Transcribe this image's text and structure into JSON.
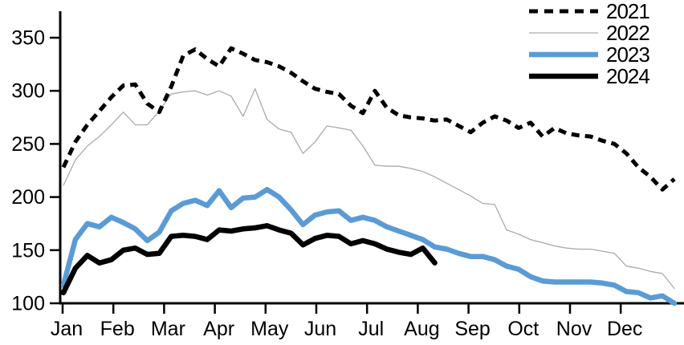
{
  "chart_data": {
    "type": "line",
    "title": "",
    "xlabel": "",
    "ylabel": "",
    "x_unit": "weekly observations, Jan-Dec",
    "x_tick_labels": [
      "Jan",
      "Feb",
      "Mar",
      "Apr",
      "May",
      "Jun",
      "Jul",
      "Aug",
      "Sep",
      "Oct",
      "Nov",
      "Dec"
    ],
    "y_ticks": [
      100,
      150,
      200,
      250,
      300,
      350
    ],
    "ylim": [
      100,
      375
    ],
    "grid": false,
    "legend_position": "top-right",
    "series": [
      {
        "name": "2021",
        "color": "#000000",
        "style": "dashed",
        "width": 5,
        "values": [
          228,
          252,
          268,
          281,
          294,
          305,
          306,
          288,
          280,
          304,
          333,
          339,
          330,
          323,
          340,
          335,
          329,
          327,
          323,
          317,
          309,
          302,
          299,
          297,
          286,
          279,
          300,
          284,
          277,
          275,
          274,
          272,
          273,
          267,
          261,
          270,
          276,
          272,
          265,
          270,
          257,
          265,
          260,
          258,
          257,
          253,
          250,
          241,
          228,
          219,
          207,
          217
        ]
      },
      {
        "name": "2022",
        "color": "#aaaaaa",
        "style": "solid",
        "width": 1.3,
        "values": [
          211,
          235,
          248,
          257,
          268,
          280,
          268,
          268,
          281,
          297,
          299,
          300,
          296,
          300,
          295,
          276,
          302,
          273,
          264,
          261,
          241,
          252,
          267,
          265,
          263,
          248,
          230,
          229,
          229,
          227,
          224,
          219,
          213,
          207,
          201,
          194,
          193,
          169,
          165,
          160,
          157,
          154,
          152,
          151,
          151,
          149,
          147,
          135,
          133,
          130,
          128,
          114
        ]
      },
      {
        "name": "2023",
        "color": "#5b9bd5",
        "style": "solid",
        "width": 6.5,
        "values": [
          117,
          160,
          175,
          172,
          181,
          176,
          170,
          159,
          167,
          187,
          194,
          197,
          192,
          206,
          190,
          199,
          200,
          207,
          200,
          188,
          174,
          183,
          186,
          187,
          178,
          181,
          178,
          172,
          168,
          164,
          160,
          153,
          151,
          147,
          144,
          144,
          141,
          135,
          132,
          125,
          121,
          120,
          120,
          120,
          120,
          119,
          117,
          111,
          110,
          105,
          107,
          100
        ]
      },
      {
        "name": "2024",
        "color": "#000000",
        "style": "solid",
        "width": 6.5,
        "values": [
          110,
          133,
          145,
          138,
          141,
          150,
          152,
          146,
          147,
          163,
          164,
          163,
          160,
          169,
          168,
          170,
          171,
          173,
          169,
          166,
          155,
          161,
          164,
          163,
          156,
          159,
          156,
          151,
          148,
          146,
          152,
          138
        ]
      }
    ]
  }
}
